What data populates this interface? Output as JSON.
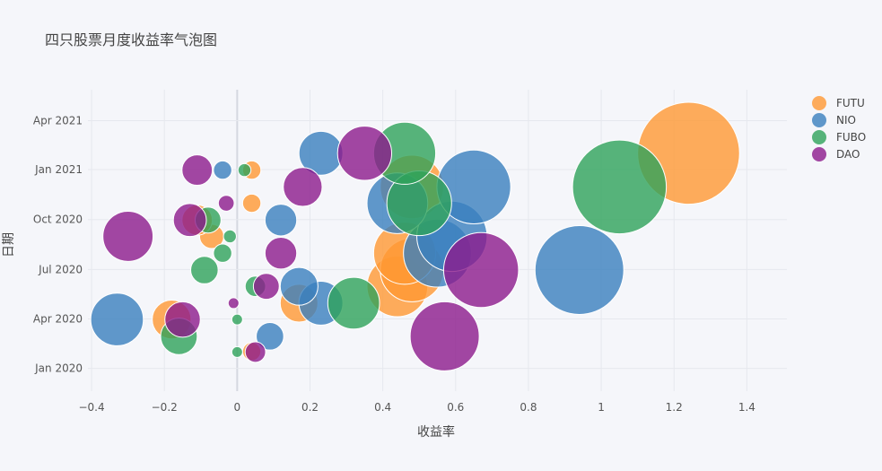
{
  "chart_data": {
    "type": "scatter",
    "title": "四只股票月度收益率气泡图",
    "xlabel": "收益率",
    "ylabel": "日期",
    "xlim": [
      -0.41,
      1.51
    ],
    "ylim": [
      "2019-11-20",
      "2021-05-28"
    ],
    "x_ticks": [
      -0.4,
      -0.2,
      0,
      0.2,
      0.4,
      0.6,
      0.8,
      1,
      1.2,
      1.4
    ],
    "x_tick_labels": [
      "−0.4",
      "−0.2",
      "0",
      "0.2",
      "0.4",
      "0.6",
      "0.8",
      "1",
      "1.2",
      "1.4"
    ],
    "y_ticks": [
      "2020-01-01",
      "2020-04-01",
      "2020-07-01",
      "2020-10-01",
      "2021-01-01",
      "2021-04-01"
    ],
    "y_tick_labels": [
      "Jan 2020",
      "Apr 2020",
      "Jul 2020",
      "Oct 2020",
      "Jan 2021",
      "Apr 2021"
    ],
    "grid": true,
    "legend_position": "right",
    "size_encoding": "bubble area proportional to |return|",
    "series": [
      {
        "name": "FUTU",
        "color": "#ff9933",
        "points": [
          {
            "x": 0.04,
            "y": "2020-02-01"
          },
          {
            "x": -0.18,
            "y": "2020-03-31"
          },
          {
            "x": 0.17,
            "y": "2020-04-30"
          },
          {
            "x": 0.44,
            "y": "2020-05-31"
          },
          {
            "x": 0.48,
            "y": "2020-06-30"
          },
          {
            "x": 0.46,
            "y": "2020-07-31"
          },
          {
            "x": -0.07,
            "y": "2020-08-31"
          },
          {
            "x": -0.11,
            "y": "2020-09-30"
          },
          {
            "x": 0.04,
            "y": "2020-10-31"
          },
          {
            "x": 0.48,
            "y": "2020-11-30"
          },
          {
            "x": 0.04,
            "y": "2020-12-31"
          },
          {
            "x": 1.24,
            "y": "2021-01-31"
          }
        ]
      },
      {
        "name": "NIO",
        "color": "#3a80be",
        "points": [
          {
            "x": 0.09,
            "y": "2020-02-29"
          },
          {
            "x": -0.33,
            "y": "2020-03-31"
          },
          {
            "x": 0.23,
            "y": "2020-04-30"
          },
          {
            "x": 0.17,
            "y": "2020-05-31"
          },
          {
            "x": 0.94,
            "y": "2020-06-30"
          },
          {
            "x": 0.55,
            "y": "2020-07-31"
          },
          {
            "x": 0.59,
            "y": "2020-08-31"
          },
          {
            "x": 0.12,
            "y": "2020-09-30"
          },
          {
            "x": 0.44,
            "y": "2020-10-31"
          },
          {
            "x": 0.65,
            "y": "2020-11-30"
          },
          {
            "x": -0.04,
            "y": "2020-12-31"
          },
          {
            "x": 0.23,
            "y": "2021-01-31"
          }
        ]
      },
      {
        "name": "FUBO",
        "color": "#2ea35a",
        "points": [
          {
            "x": 0.0,
            "y": "2020-01-31"
          },
          {
            "x": -0.16,
            "y": "2020-02-29"
          },
          {
            "x": 0.0,
            "y": "2020-03-31"
          },
          {
            "x": 0.32,
            "y": "2020-04-30"
          },
          {
            "x": 0.05,
            "y": "2020-05-31"
          },
          {
            "x": -0.09,
            "y": "2020-06-30"
          },
          {
            "x": -0.04,
            "y": "2020-07-31"
          },
          {
            "x": -0.02,
            "y": "2020-08-31"
          },
          {
            "x": -0.08,
            "y": "2020-09-30"
          },
          {
            "x": 0.5,
            "y": "2020-10-31"
          },
          {
            "x": 1.05,
            "y": "2020-11-30"
          },
          {
            "x": 0.02,
            "y": "2020-12-31"
          },
          {
            "x": 0.46,
            "y": "2021-01-31"
          }
        ]
      },
      {
        "name": "DAO",
        "color": "#8c1a8c",
        "points": [
          {
            "x": 0.05,
            "y": "2020-01-31"
          },
          {
            "x": 0.57,
            "y": "2020-02-29"
          },
          {
            "x": -0.15,
            "y": "2020-03-31"
          },
          {
            "x": -0.01,
            "y": "2020-04-30"
          },
          {
            "x": 0.08,
            "y": "2020-05-31"
          },
          {
            "x": 0.67,
            "y": "2020-06-30"
          },
          {
            "x": 0.12,
            "y": "2020-07-31"
          },
          {
            "x": -0.3,
            "y": "2020-08-31"
          },
          {
            "x": -0.13,
            "y": "2020-09-30"
          },
          {
            "x": -0.03,
            "y": "2020-10-31"
          },
          {
            "x": 0.18,
            "y": "2020-11-30"
          },
          {
            "x": -0.11,
            "y": "2020-12-31"
          },
          {
            "x": 0.35,
            "y": "2021-01-31"
          }
        ]
      }
    ]
  }
}
